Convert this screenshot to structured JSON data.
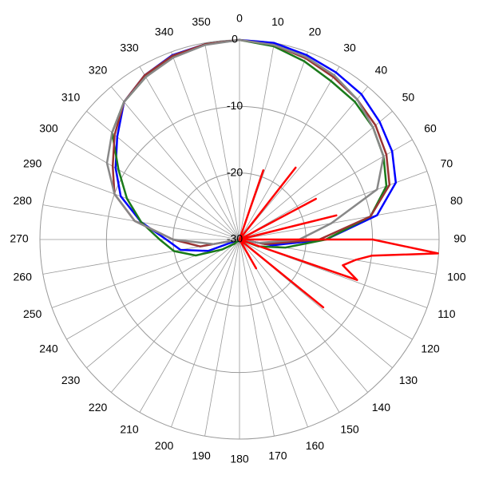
{
  "chart_data": {
    "type": "polar",
    "rlim": [
      -30,
      0
    ],
    "rticks": [
      -30,
      -20,
      -10,
      0
    ],
    "thetaticks": [
      0,
      10,
      20,
      30,
      40,
      50,
      60,
      70,
      80,
      90,
      100,
      110,
      120,
      130,
      140,
      150,
      160,
      170,
      180,
      190,
      200,
      210,
      220,
      230,
      240,
      250,
      260,
      270,
      280,
      290,
      300,
      310,
      320,
      330,
      340,
      350
    ],
    "series": [
      {
        "color": "#0000ff",
        "theta": [
          0,
          10,
          20,
          30,
          40,
          50,
          60,
          70,
          80,
          90,
          100,
          110,
          120,
          130,
          140,
          150,
          160,
          170,
          180,
          190,
          200,
          210,
          220,
          230,
          240,
          250,
          260,
          270,
          280,
          290,
          300,
          310,
          320,
          330,
          340,
          350
        ],
        "values": [
          0,
          0,
          -0.5,
          -1,
          -1.5,
          -2.5,
          -3.5,
          -5,
          -9,
          -17,
          -25,
          -30,
          -30,
          -30,
          -30,
          -30,
          -30,
          -30,
          -30,
          -30,
          -30,
          -30,
          -30,
          -30,
          -30,
          -25,
          -21,
          -19,
          -15,
          -11,
          -8.5,
          -6,
          -3,
          -1.5,
          -0.5,
          -0.2
        ]
      },
      {
        "color": "#1a7a1a",
        "theta": [
          0,
          10,
          20,
          30,
          40,
          50,
          60,
          70,
          80,
          90,
          100,
          110,
          120,
          130,
          140,
          150,
          160,
          170,
          180,
          190,
          200,
          210,
          220,
          230,
          240,
          250,
          260,
          270,
          280,
          290,
          300,
          310,
          320,
          330,
          340,
          350
        ],
        "values": [
          0,
          -0.5,
          -1.5,
          -2.5,
          -3,
          -3.8,
          -5,
          -6.5,
          -10,
          -17,
          -23,
          -27,
          -30,
          -30,
          -30,
          -30,
          -30,
          -30,
          -30,
          -30,
          -30,
          -30,
          -30,
          -29,
          -27,
          -23,
          -20,
          -18,
          -15,
          -12,
          -9,
          -5,
          -3,
          -1.8,
          -0.8,
          -0.2
        ]
      },
      {
        "color": "#993333",
        "theta": [
          0,
          10,
          20,
          30,
          40,
          50,
          60,
          70,
          80,
          90,
          100,
          110,
          120,
          130,
          140,
          150,
          160,
          170,
          180,
          190,
          200,
          210,
          220,
          230,
          240,
          250,
          260,
          270,
          280,
          290,
          300,
          310,
          320,
          330,
          340,
          350
        ],
        "values": [
          0,
          -0.3,
          -1,
          -1.8,
          -2.5,
          -3.3,
          -4.5,
          -6,
          -10,
          -18,
          -26,
          -30,
          -30,
          -30,
          -30,
          -30,
          -30,
          -30,
          -30,
          -30,
          -30,
          -30,
          -30,
          -30,
          -30,
          -30,
          -24,
          -20,
          -14,
          -10,
          -8,
          -5.5,
          -3,
          -1.5,
          -0.6,
          -0.2
        ]
      },
      {
        "color": "#888888",
        "theta": [
          0,
          10,
          20,
          30,
          40,
          50,
          60,
          70,
          80,
          90,
          100,
          110,
          120,
          130,
          140,
          150,
          160,
          170,
          180,
          190,
          200,
          210,
          220,
          230,
          240,
          250,
          260,
          270,
          280,
          290,
          300,
          310,
          320,
          330,
          340,
          350
        ],
        "values": [
          0,
          -0.3,
          -0.8,
          -1.5,
          -2.5,
          -3.8,
          -5,
          -8,
          -16,
          -21,
          -27,
          -30,
          -30,
          -30,
          -30,
          -30,
          -30,
          -30,
          -30,
          -30,
          -30,
          -30,
          -30,
          -30,
          -30,
          -30,
          -26,
          -20,
          -14,
          -10,
          -7,
          -5,
          -3,
          -1.8,
          -0.9,
          -0.3
        ]
      },
      {
        "color": "#ff0000",
        "theta": [
          0,
          10,
          19,
          28,
          38,
          50,
          62,
          69,
          76,
          85,
          90,
          94,
          97,
          100,
          104,
          109,
          118,
          129,
          140,
          150,
          160,
          200,
          300,
          355
        ],
        "values": [
          -30,
          -30,
          -19,
          -30,
          -16.3,
          -30,
          -17,
          -30,
          -15,
          -30,
          -10,
          -0.1,
          -10,
          -12.3,
          -14,
          -11.3,
          -30,
          -13.8,
          -30,
          -25,
          -30,
          -30,
          -30,
          -30
        ]
      }
    ]
  }
}
